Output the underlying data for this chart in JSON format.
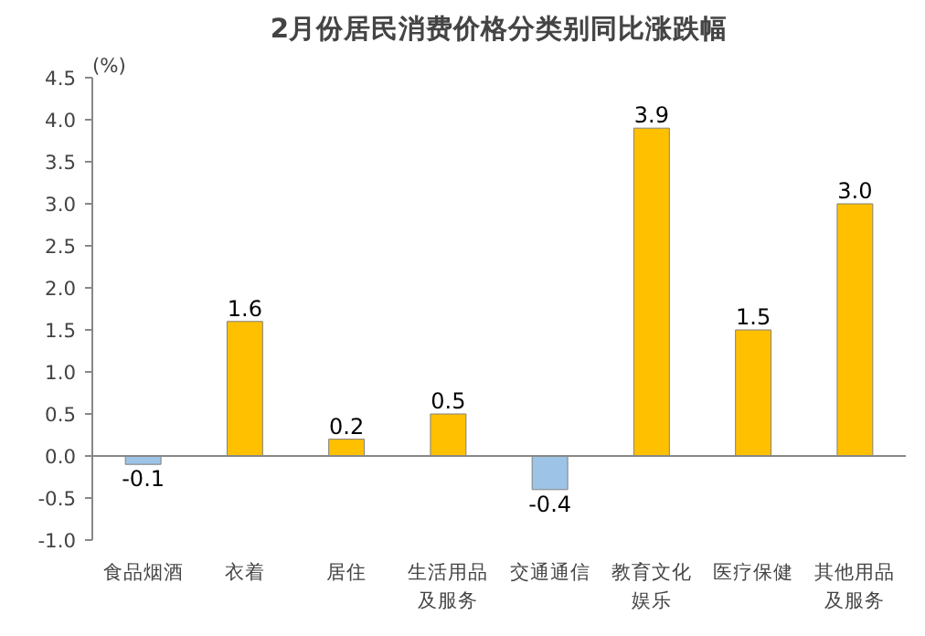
{
  "chart_data": {
    "type": "bar",
    "title": "2月份居民消费价格分类别同比涨跌幅",
    "ylabel": "(%)",
    "categories": [
      "食品烟酒",
      "衣着",
      "居住",
      "生活用品及服务",
      "交通通信",
      "教育文化娱乐",
      "医疗保健",
      "其他用品及服务"
    ],
    "values": [
      -0.1,
      1.6,
      0.2,
      0.5,
      -0.4,
      3.9,
      1.5,
      3.0
    ],
    "colors": [
      "#9dc3e6",
      "#ffc000",
      "#ffc000",
      "#ffc000",
      "#9dc3e6",
      "#ffc000",
      "#ffc000",
      "#ffc000"
    ],
    "ylim": [
      -1.0,
      4.5
    ],
    "yticks": [
      {
        "value": -1.0,
        "label": "-1.0"
      },
      {
        "value": -0.5,
        "label": "-0.5"
      },
      {
        "value": 0,
        "label": "0.0"
      },
      {
        "value": 0.5,
        "label": "0.5"
      },
      {
        "value": 1.0,
        "label": "1.0"
      },
      {
        "value": 1.5,
        "label": "1.5"
      },
      {
        "value": 2.0,
        "label": "2.0"
      },
      {
        "value": 2.5,
        "label": "2.5"
      },
      {
        "value": 3.0,
        "label": "3.0"
      },
      {
        "value": 3.5,
        "label": "3.5"
      },
      {
        "value": 4.0,
        "label": "4.0"
      },
      {
        "value": 4.5,
        "label": "4.5"
      }
    ],
    "value_labels": [
      "-0.1",
      "1.6",
      "0.2",
      "0.5",
      "-0.4",
      "3.9",
      "1.5",
      "3.0"
    ]
  }
}
